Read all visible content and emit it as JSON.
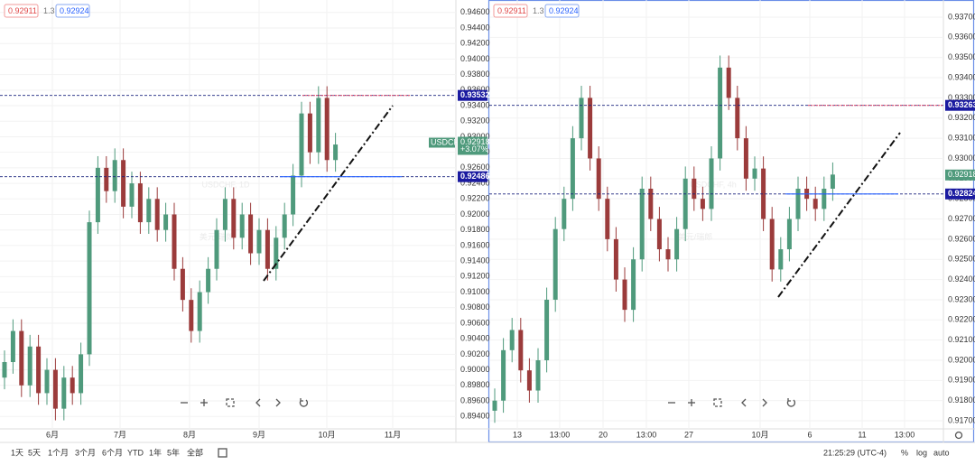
{
  "chart_data": [
    {
      "type": "candlestick",
      "quote": {
        "bid": "0.92911",
        "spread": "1.3",
        "ask": "0.92924"
      },
      "watermark": "USDCHF, 1D",
      "watermark_sub": "美元/瑞郎",
      "x_labels": [
        "6月",
        "7月",
        "8月",
        "9月",
        "10月",
        "11月"
      ],
      "ylim": [
        0.8924,
        0.9476
      ],
      "yticks": [
        {
          "value": 0.894,
          "label": "0.89400"
        },
        {
          "value": 0.896,
          "label": "0.89600"
        },
        {
          "value": 0.898,
          "label": "0.89800"
        },
        {
          "value": 0.9,
          "label": "0.90000"
        },
        {
          "value": 0.902,
          "label": "0.90200"
        },
        {
          "value": 0.904,
          "label": "0.90400"
        },
        {
          "value": 0.906,
          "label": "0.90600"
        },
        {
          "value": 0.908,
          "label": "0.90800"
        },
        {
          "value": 0.91,
          "label": "0.91000"
        },
        {
          "value": 0.912,
          "label": "0.91200"
        },
        {
          "value": 0.914,
          "label": "0.91400"
        },
        {
          "value": 0.916,
          "label": "0.91600"
        },
        {
          "value": 0.918,
          "label": "0.91800"
        },
        {
          "value": 0.92,
          "label": "0.92000"
        },
        {
          "value": 0.922,
          "label": "0.92200"
        },
        {
          "value": 0.924,
          "label": "0.92400"
        },
        {
          "value": 0.926,
          "label": "0.92600"
        },
        {
          "value": 0.928,
          "label": "0.92800"
        },
        {
          "value": 0.93,
          "label": "0.93000"
        },
        {
          "value": 0.932,
          "label": "0.93200"
        },
        {
          "value": 0.934,
          "label": "0.93400"
        },
        {
          "value": 0.936,
          "label": "0.93600"
        },
        {
          "value": 0.938,
          "label": "0.93800"
        },
        {
          "value": 0.94,
          "label": "0.94000"
        },
        {
          "value": 0.942,
          "label": "0.94200"
        },
        {
          "value": 0.944,
          "label": "0.94400"
        },
        {
          "value": 0.946,
          "label": "0.94600"
        }
      ],
      "levels": [
        {
          "value": 0.93532,
          "label": "0.93532"
        },
        {
          "value": 0.92486,
          "label": "0.92486"
        }
      ],
      "last": {
        "symbol": "USDCHF",
        "value": 0.92918,
        "label": "0.92918",
        "change": "+3.07%"
      },
      "up_color": "#4f9a7c",
      "down_color": "#9b3b3b",
      "candles": [
        [
          0.899,
          0.9025,
          0.8975,
          0.901
        ],
        [
          0.901,
          0.9065,
          0.8995,
          0.905
        ],
        [
          0.905,
          0.9065,
          0.8965,
          0.898
        ],
        [
          0.898,
          0.9045,
          0.8965,
          0.903
        ],
        [
          0.903,
          0.9045,
          0.8955,
          0.897
        ],
        [
          0.897,
          0.9015,
          0.8955,
          0.9
        ],
        [
          0.9,
          0.9015,
          0.8935,
          0.895
        ],
        [
          0.895,
          0.9005,
          0.8935,
          0.899
        ],
        [
          0.899,
          0.9005,
          0.8955,
          0.897
        ],
        [
          0.897,
          0.9035,
          0.8955,
          0.902
        ],
        [
          0.902,
          0.9205,
          0.9005,
          0.919
        ],
        [
          0.919,
          0.9275,
          0.9175,
          0.926
        ],
        [
          0.926,
          0.9275,
          0.9215,
          0.923
        ],
        [
          0.923,
          0.9285,
          0.9215,
          0.927
        ],
        [
          0.927,
          0.9285,
          0.9195,
          0.921
        ],
        [
          0.921,
          0.9255,
          0.9195,
          0.924
        ],
        [
          0.924,
          0.9255,
          0.9175,
          0.919
        ],
        [
          0.919,
          0.9235,
          0.9175,
          0.922
        ],
        [
          0.922,
          0.9235,
          0.9165,
          0.918
        ],
        [
          0.918,
          0.9215,
          0.9165,
          0.92
        ],
        [
          0.92,
          0.9215,
          0.9115,
          0.913
        ],
        [
          0.913,
          0.9145,
          0.9075,
          0.909
        ],
        [
          0.909,
          0.9105,
          0.9035,
          0.905
        ],
        [
          0.905,
          0.9115,
          0.9035,
          0.91
        ],
        [
          0.91,
          0.9145,
          0.9085,
          0.913
        ],
        [
          0.913,
          0.9195,
          0.9115,
          0.918
        ],
        [
          0.918,
          0.9235,
          0.9165,
          0.922
        ],
        [
          0.922,
          0.9235,
          0.9155,
          0.917
        ],
        [
          0.917,
          0.9215,
          0.9155,
          0.92
        ],
        [
          0.92,
          0.9215,
          0.9135,
          0.915
        ],
        [
          0.915,
          0.9195,
          0.9135,
          0.918
        ],
        [
          0.918,
          0.9195,
          0.9115,
          0.913
        ],
        [
          0.913,
          0.9185,
          0.9115,
          0.917
        ],
        [
          0.917,
          0.9215,
          0.9155,
          0.92
        ],
        [
          0.92,
          0.9265,
          0.9185,
          0.925
        ],
        [
          0.925,
          0.9345,
          0.9235,
          0.933
        ],
        [
          0.933,
          0.9345,
          0.9265,
          0.928
        ],
        [
          0.928,
          0.9365,
          0.9265,
          0.935
        ],
        [
          0.935,
          0.9365,
          0.9255,
          0.927
        ],
        [
          0.927,
          0.9305,
          0.9255,
          0.929
        ]
      ]
    },
    {
      "type": "candlestick",
      "quote": {
        "bid": "0.92911",
        "spread": "1.3",
        "ask": "0.92924"
      },
      "watermark": "USDCHF, 4h",
      "watermark_sub": "美元/瑞郎",
      "x_labels": [
        "13",
        "13:00",
        "20",
        "13:00",
        "27",
        "10月",
        "6",
        "11",
        "13:00"
      ],
      "ylim": [
        0.9166,
        0.93785
      ],
      "yticks": [
        {
          "value": 0.917,
          "label": "0.91700"
        },
        {
          "value": 0.918,
          "label": "0.91800"
        },
        {
          "value": 0.919,
          "label": "0.91900"
        },
        {
          "value": 0.92,
          "label": "0.92000"
        },
        {
          "value": 0.921,
          "label": "0.92100"
        },
        {
          "value": 0.922,
          "label": "0.92200"
        },
        {
          "value": 0.923,
          "label": "0.92300"
        },
        {
          "value": 0.924,
          "label": "0.92400"
        },
        {
          "value": 0.925,
          "label": "0.92500"
        },
        {
          "value": 0.926,
          "label": "0.92600"
        },
        {
          "value": 0.927,
          "label": "0.92700"
        },
        {
          "value": 0.928,
          "label": "0.92800"
        },
        {
          "value": 0.929,
          "label": "0.92900"
        },
        {
          "value": 0.93,
          "label": "0.93000"
        },
        {
          "value": 0.931,
          "label": "0.93100"
        },
        {
          "value": 0.932,
          "label": "0.93200"
        },
        {
          "value": 0.933,
          "label": "0.93300"
        },
        {
          "value": 0.934,
          "label": "0.93400"
        },
        {
          "value": 0.935,
          "label": "0.93500"
        },
        {
          "value": 0.936,
          "label": "0.93600"
        },
        {
          "value": 0.937,
          "label": "0.93700"
        }
      ],
      "levels": [
        {
          "value": 0.93263,
          "label": "0.93263"
        },
        {
          "value": 0.92824,
          "label": "0.92824"
        }
      ],
      "last": {
        "value": 0.92918,
        "label": "0.92918"
      },
      "up_color": "#4f9a7c",
      "down_color": "#9b3b3b",
      "candles": [
        [
          0.9175,
          0.9186,
          0.9169,
          0.918
        ],
        [
          0.918,
          0.9211,
          0.9174,
          0.9205
        ],
        [
          0.9205,
          0.9221,
          0.9199,
          0.9215
        ],
        [
          0.9215,
          0.9221,
          0.9189,
          0.9195
        ],
        [
          0.9195,
          0.9201,
          0.9179,
          0.9185
        ],
        [
          0.9185,
          0.9206,
          0.9179,
          0.92
        ],
        [
          0.92,
          0.9236,
          0.9194,
          0.923
        ],
        [
          0.923,
          0.9271,
          0.9224,
          0.9265
        ],
        [
          0.9265,
          0.9286,
          0.9259,
          0.928
        ],
        [
          0.928,
          0.9316,
          0.9274,
          0.931
        ],
        [
          0.931,
          0.9336,
          0.9304,
          0.933
        ],
        [
          0.933,
          0.9336,
          0.9294,
          0.93
        ],
        [
          0.93,
          0.9306,
          0.9274,
          0.928
        ],
        [
          0.928,
          0.9286,
          0.9254,
          0.926
        ],
        [
          0.926,
          0.9266,
          0.9234,
          0.924
        ],
        [
          0.924,
          0.9246,
          0.9219,
          0.9225
        ],
        [
          0.9225,
          0.9256,
          0.9219,
          0.925
        ],
        [
          0.925,
          0.9291,
          0.9244,
          0.9285
        ],
        [
          0.9285,
          0.9291,
          0.9264,
          0.927
        ],
        [
          0.927,
          0.9276,
          0.9249,
          0.9255
        ],
        [
          0.9255,
          0.9261,
          0.9244,
          0.925
        ],
        [
          0.925,
          0.9271,
          0.9244,
          0.9265
        ],
        [
          0.9265,
          0.9296,
          0.9259,
          0.929
        ],
        [
          0.929,
          0.9296,
          0.9274,
          0.928
        ],
        [
          0.928,
          0.9286,
          0.9269,
          0.9275
        ],
        [
          0.9275,
          0.9306,
          0.9269,
          0.93
        ],
        [
          0.93,
          0.9351,
          0.9294,
          0.9345
        ],
        [
          0.9345,
          0.9351,
          0.9324,
          0.933
        ],
        [
          0.933,
          0.9336,
          0.9304,
          0.931
        ],
        [
          0.931,
          0.9316,
          0.9284,
          0.929
        ],
        [
          0.929,
          0.9301,
          0.9284,
          0.9295
        ],
        [
          0.9295,
          0.9301,
          0.9264,
          0.927
        ],
        [
          0.927,
          0.9276,
          0.9239,
          0.9245
        ],
        [
          0.9245,
          0.9261,
          0.9239,
          0.9255
        ],
        [
          0.9255,
          0.9276,
          0.9249,
          0.927
        ],
        [
          0.927,
          0.9291,
          0.9264,
          0.9285
        ],
        [
          0.9285,
          0.9291,
          0.9274,
          0.928
        ],
        [
          0.928,
          0.9286,
          0.9269,
          0.9275
        ],
        [
          0.9275,
          0.9291,
          0.9269,
          0.9285
        ],
        [
          0.9285,
          0.9298,
          0.9279,
          0.9292
        ]
      ]
    }
  ],
  "toolbar": {
    "ranges": [
      "1天",
      "5天",
      "1个月",
      "3个月",
      "6个月",
      "YTD",
      "1年",
      "5年",
      "全部"
    ],
    "clock": "21:25:29 (UTC-4)",
    "options": [
      "%",
      "log",
      "auto"
    ]
  }
}
